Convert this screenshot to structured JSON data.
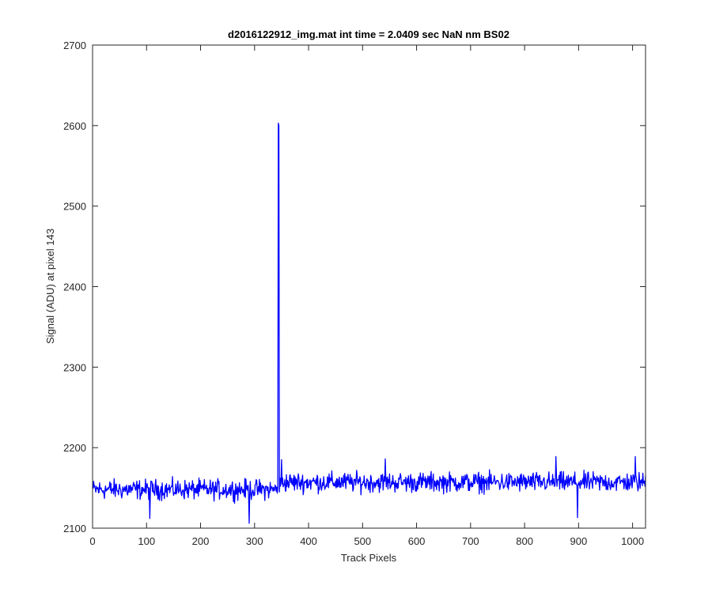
{
  "chart_data": {
    "type": "line",
    "title": "d2016122912_img.mat int time = 2.0409 sec  NaN nm BS02",
    "xlabel": "Track Pixels",
    "ylabel": "Signal (ADU) at pixel 143",
    "xlim": [
      0,
      1024
    ],
    "ylim": [
      2100,
      2700
    ],
    "xticks": [
      0,
      100,
      200,
      300,
      400,
      500,
      600,
      700,
      800,
      900,
      1000
    ],
    "yticks": [
      2100,
      2200,
      2300,
      2400,
      2500,
      2600,
      2700
    ],
    "xtick_labels": [
      "0",
      "100",
      "200",
      "300",
      "400",
      "500",
      "600",
      "700",
      "800",
      "900",
      "1000"
    ],
    "ytick_labels": [
      "2100",
      "2200",
      "2300",
      "2400",
      "2500",
      "2600",
      "2700"
    ],
    "grid": false,
    "legend": "none",
    "series": [
      {
        "color": "#0000ff",
        "x_range": [
          1,
          1024
        ],
        "baseline_segments": [
          {
            "x": [
              1,
              340
            ],
            "mean": 2148,
            "noise_amplitude": 18
          },
          {
            "x": [
              350,
              1024
            ],
            "mean": 2157,
            "noise_amplitude": 18
          }
        ],
        "notable_points": [
          {
            "x": 344,
            "y": 2603
          },
          {
            "x": 345,
            "y": 2600
          },
          {
            "x": 346,
            "y": 2145
          },
          {
            "x": 350,
            "y": 2185
          },
          {
            "x": 106,
            "y": 2112
          },
          {
            "x": 290,
            "y": 2106
          },
          {
            "x": 542,
            "y": 2186
          },
          {
            "x": 858,
            "y": 2189
          },
          {
            "x": 898,
            "y": 2113
          },
          {
            "x": 1005,
            "y": 2189
          }
        ]
      }
    ]
  },
  "colors": {
    "line": "#0000ff",
    "axes": "#262626",
    "background": "#ffffff"
  }
}
